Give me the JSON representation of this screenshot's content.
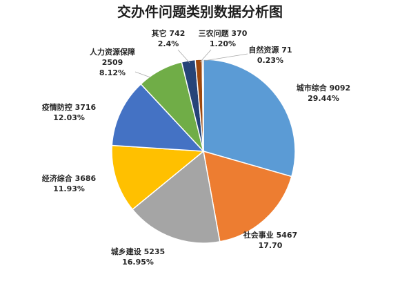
{
  "chart_data": {
    "type": "pie",
    "title": "交办件问题类别数据分析图",
    "slices": [
      {
        "name": "城市综合",
        "value": 9092,
        "percent_label": "29.44%",
        "color": "#5b9bd5"
      },
      {
        "name": "社会事业",
        "value": 5467,
        "percent_label": "17.70",
        "color": "#ed7d31"
      },
      {
        "name": "城乡建设",
        "value": 5235,
        "percent_label": "16.95%",
        "color": "#a5a5a5"
      },
      {
        "name": "经济综合",
        "value": 3686,
        "percent_label": "11.93%",
        "color": "#ffc000"
      },
      {
        "name": "疫情防控",
        "value": 3716,
        "percent_label": "12.03%",
        "color": "#4472c4"
      },
      {
        "name": "人力资源保障",
        "value": 2509,
        "percent_label": "8.12%",
        "color": "#70ad47"
      },
      {
        "name": "其它",
        "value": 742,
        "percent_label": "2.4%",
        "color": "#264478"
      },
      {
        "name": "三农问题",
        "value": 370,
        "percent_label": "1.20%",
        "color": "#9e480e"
      },
      {
        "name": "自然资源",
        "value": 71,
        "percent_label": "0.23%",
        "color": "#636363"
      }
    ],
    "legend": "none",
    "start_angle": "top",
    "direction": "clockwise"
  }
}
